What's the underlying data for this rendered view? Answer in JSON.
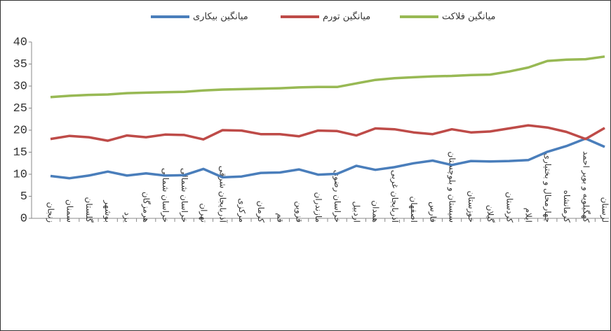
{
  "chart_data": {
    "type": "line",
    "categories": [
      "زنجان",
      "سمنان",
      "گلستان",
      "بوشهر",
      "یزد",
      "هرمزگان",
      "خراسان شمالی",
      "خراسان شمالی",
      "تهران",
      "آذربایجان شرقی",
      "مرکزی",
      "کرمان",
      "قم",
      "قزوین",
      "مازندران",
      "خراسان رضوی",
      "اردبیل",
      "همدان",
      "آذربایجان غربی",
      "اصفهان",
      "فارس",
      "سیستان و بلوچستان",
      "خوزستان",
      "گیلان",
      "کردستان",
      "ایلام",
      "چهارمحال و بختیاری",
      "کرمانشاه",
      "کهگیلویه و بویر احمد",
      "لرستان"
    ],
    "series": [
      {
        "name": "میانگین بیکاری",
        "color": "#4a7ebb",
        "values": [
          9.6,
          9.1,
          9.7,
          10.6,
          9.7,
          10.2,
          9.7,
          9.8,
          11.2,
          9.3,
          9.5,
          10.3,
          10.4,
          11.1,
          9.9,
          10.1,
          11.9,
          11.0,
          11.6,
          12.5,
          13.1,
          12.1,
          13.0,
          12.9,
          13.0,
          13.2,
          15.1,
          16.4,
          18.1,
          16.2
        ]
      },
      {
        "name": "میانگین تورم",
        "color": "#be4b48",
        "values": [
          18.0,
          18.7,
          18.4,
          17.6,
          18.8,
          18.4,
          19.0,
          18.9,
          17.9,
          20.0,
          19.9,
          19.1,
          19.1,
          18.6,
          19.9,
          19.8,
          18.8,
          20.4,
          20.2,
          19.5,
          19.1,
          20.2,
          19.5,
          19.7,
          20.4,
          21.1,
          20.6,
          19.6,
          18.0,
          20.5
        ]
      },
      {
        "name": "میانگین فلاکت",
        "color": "#98b954",
        "values": [
          27.5,
          27.8,
          28.0,
          28.1,
          28.4,
          28.5,
          28.6,
          28.7,
          29.0,
          29.2,
          29.3,
          29.4,
          29.5,
          29.7,
          29.8,
          29.8,
          30.6,
          31.4,
          31.8,
          32.0,
          32.2,
          32.3,
          32.5,
          32.6,
          33.3,
          34.2,
          35.7,
          36.0,
          36.1,
          36.7
        ]
      }
    ],
    "ylim": [
      0,
      40
    ],
    "yticks": [
      0,
      5,
      10,
      15,
      20,
      25,
      30,
      35,
      40
    ],
    "grid": false,
    "legend": "top"
  }
}
